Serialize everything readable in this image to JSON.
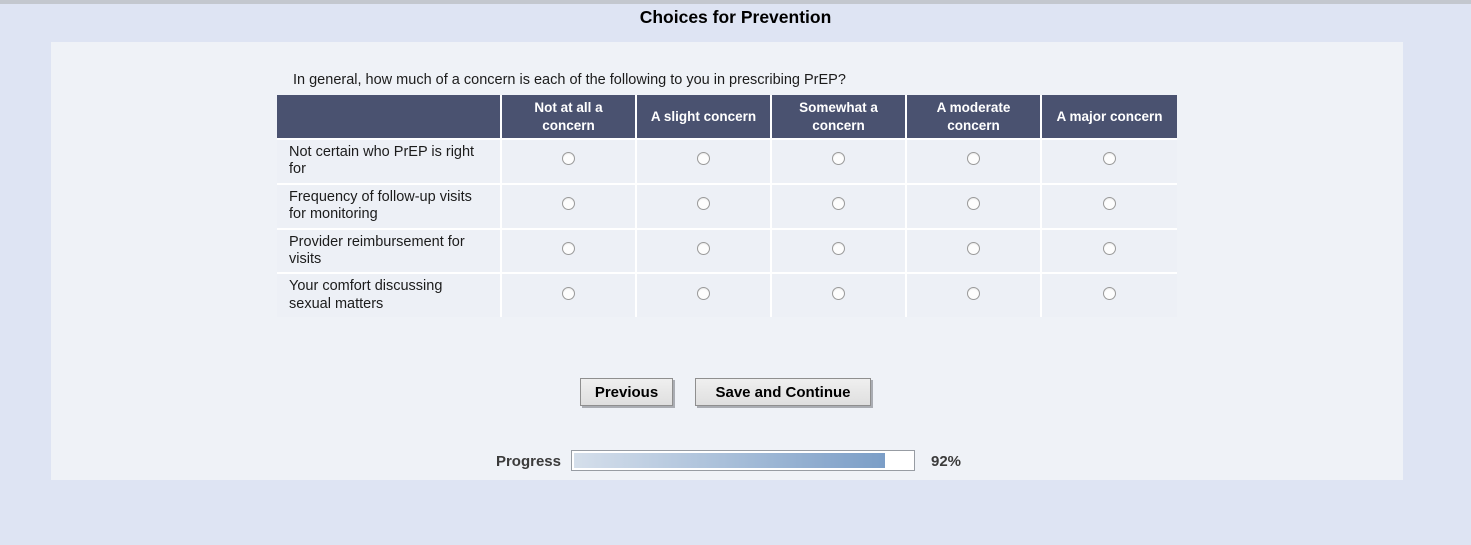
{
  "page": {
    "title": "Choices for Prevention"
  },
  "survey": {
    "question": "In general, how much of a concern is each of the following to you in prescribing PrEP?",
    "columns": [
      "Not at all a concern",
      "A slight concern",
      "Somewhat a concern",
      "A moderate concern",
      "A major concern"
    ],
    "rows": [
      {
        "label": "Not certain who PrEP is right for"
      },
      {
        "label": "Frequency of follow-up visits for monitoring"
      },
      {
        "label": "Provider reimbursement for visits"
      },
      {
        "label": "Your comfort discussing sexual matters"
      }
    ]
  },
  "buttons": {
    "previous": "Previous",
    "save_continue": "Save and Continue"
  },
  "progress": {
    "label": "Progress",
    "percent": 92,
    "percent_text": "92%"
  },
  "colors": {
    "page_bg": "#dee4f3",
    "panel_bg": "#eff2f7",
    "table_header_bg": "#4a5270",
    "table_cell_bg": "#edf0f6",
    "top_bar": "#c3c7ce",
    "progress_fill_start": "#d5dfeb",
    "progress_fill_end": "#7b9ec7"
  }
}
